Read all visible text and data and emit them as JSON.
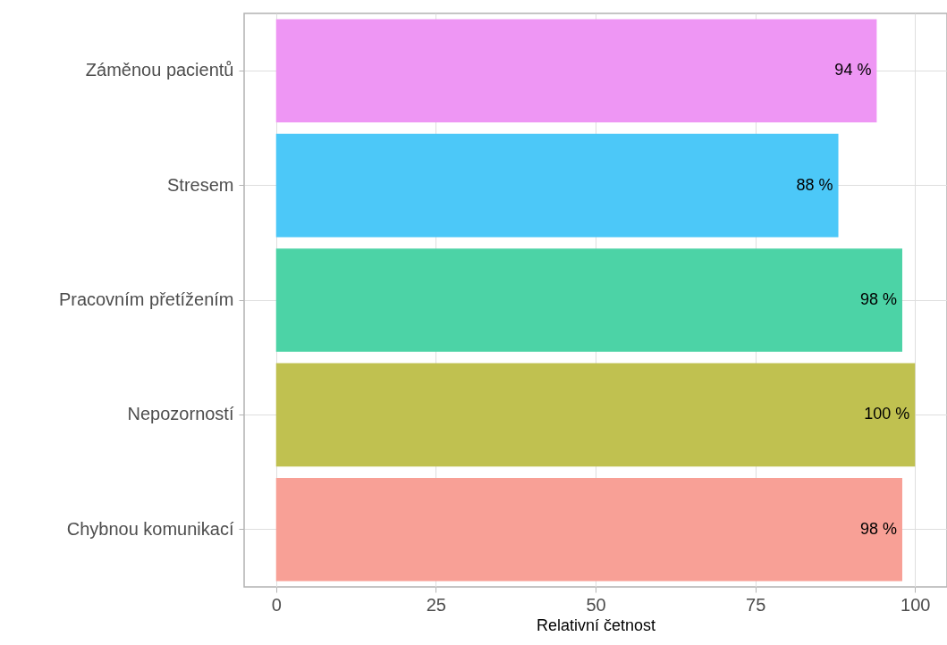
{
  "chart_data": {
    "type": "bar",
    "orientation": "horizontal",
    "xlabel": "Relativní četnost",
    "categories": [
      "Záměnou pacientů",
      "Stresem",
      "Pracovním přetížením",
      "Nepozorností",
      "Chybnou komunikací"
    ],
    "values": [
      94,
      88,
      98,
      100,
      98
    ],
    "colors": [
      "#ee96f4",
      "#4cc8f8",
      "#4cd3a6",
      "#c0c150",
      "#f8a096"
    ],
    "value_labels": [
      "94 %",
      "88 %",
      "98 %",
      "100 %",
      "98 %"
    ],
    "xlim": [
      -5,
      105
    ],
    "xticks": [
      0,
      25,
      50,
      75,
      100
    ],
    "grid": true
  }
}
